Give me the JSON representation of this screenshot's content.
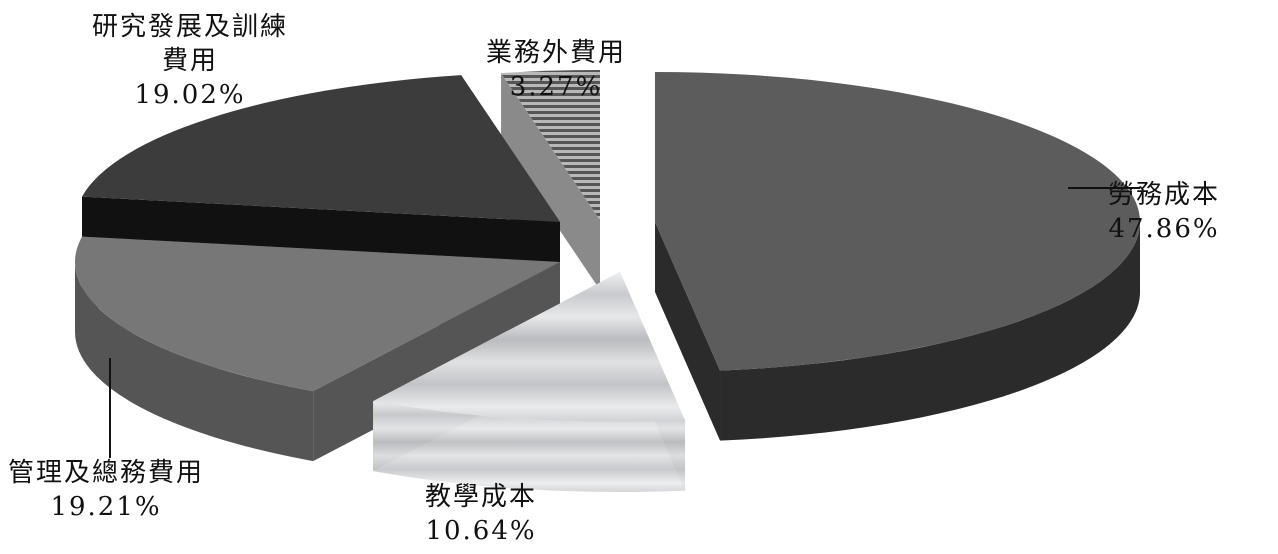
{
  "chart_data": {
    "type": "pie",
    "title": "",
    "slices": [
      {
        "name_lines": [
          "勞務成本"
        ],
        "percent_label": "47.86%",
        "value": 47.86,
        "color": "#5c5c5c",
        "side_color": "#2b2b2b"
      },
      {
        "name_lines": [
          "教學成本"
        ],
        "percent_label": "10.64%",
        "value": 10.64,
        "color": "#d4d6d9",
        "side_color": "#bdbfc2",
        "texture": "marble"
      },
      {
        "name_lines": [
          "管理及總務費用"
        ],
        "percent_label": "19.21%",
        "value": 19.21,
        "color": "#777777",
        "side_color": "#555555"
      },
      {
        "name_lines": [
          "研究發展及訓練",
          "費用"
        ],
        "percent_label": "19.02%",
        "value": 19.02,
        "color": "#3c3c3c",
        "side_color": "#111111"
      },
      {
        "name_lines": [
          "業務外費用"
        ],
        "percent_label": "3.27%",
        "value": 3.27,
        "color": "#9a9a9a",
        "side_color": "#8a8a8a",
        "texture": "stripes"
      }
    ],
    "style": "exploded-3d-pie",
    "legend": "none"
  }
}
